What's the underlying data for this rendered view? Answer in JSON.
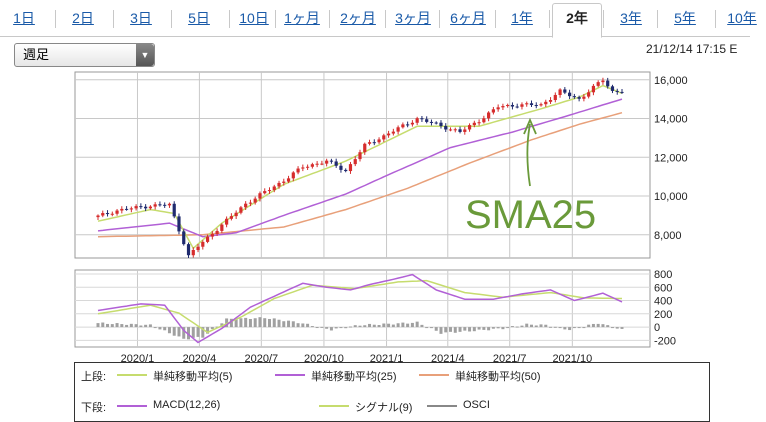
{
  "tabs": [
    "1日",
    "2日",
    "3日",
    "5日",
    "10日",
    "1ヶ月",
    "2ヶ月",
    "3ヶ月",
    "6ヶ月",
    "1年",
    "2年",
    "3年",
    "5年",
    "10年"
  ],
  "active_tab": "2年",
  "period_select": "週足",
  "timestamp": "21/12/14 17:15 E",
  "annotation": "SMA25",
  "legend": {
    "upper_label": "上段:",
    "lower_label": "下段:",
    "upper_items": [
      {
        "name": "単純移動平均(5)",
        "color": "#c6dc6e"
      },
      {
        "name": "単純移動平均(25)",
        "color": "#b160d6"
      },
      {
        "name": "単純移動平均(50)",
        "color": "#e8a07a"
      }
    ],
    "lower_items": [
      {
        "name": "MACD(12,26)",
        "color": "#b160d6"
      },
      {
        "name": "シグナル(9)",
        "color": "#c6dc6e"
      },
      {
        "name": "OSCI",
        "color": "#888888"
      }
    ]
  },
  "colors": {
    "up": "#d62c2c",
    "down": "#1f2a6e",
    "annotation": "#6a9a3a"
  },
  "chart_data": [
    {
      "type": "candlestick",
      "title": "",
      "x_tick_labels": [
        "2020/1",
        "2020/4",
        "2020/7",
        "2020/10",
        "2021/1",
        "2021/4",
        "2021/7",
        "2021/10"
      ],
      "y_ticks": [
        8000,
        10000,
        12000,
        14000,
        16000
      ],
      "y_tick_labels": [
        "8,000",
        "10,000",
        "12,000",
        "14,000",
        "16,000"
      ],
      "ylim": [
        6800,
        16400
      ],
      "x_start": "2019-11-04",
      "x_end": "2021-12-13",
      "close_anchors": [
        [
          "2019-11-04",
          8950
        ],
        [
          "2019-12-01",
          9250
        ],
        [
          "2020-01-20",
          9500
        ],
        [
          "2020-02-17",
          9550
        ],
        [
          "2020-03-09",
          7600
        ],
        [
          "2020-03-16",
          6900
        ],
        [
          "2020-03-30",
          7400
        ],
        [
          "2020-04-27",
          8300
        ],
        [
          "2020-06-08",
          9600
        ],
        [
          "2020-07-06",
          10200
        ],
        [
          "2020-08-03",
          10800
        ],
        [
          "2020-08-31",
          11500
        ],
        [
          "2020-10-05",
          11800
        ],
        [
          "2020-11-02",
          11300
        ],
        [
          "2020-11-30",
          12600
        ],
        [
          "2020-12-28",
          13100
        ],
        [
          "2021-02-15",
          14000
        ],
        [
          "2021-03-15",
          13700
        ],
        [
          "2021-04-19",
          13300
        ],
        [
          "2021-05-17",
          13900
        ],
        [
          "2021-06-14",
          14600
        ],
        [
          "2021-07-12",
          14700
        ],
        [
          "2021-08-16",
          14700
        ],
        [
          "2021-09-13",
          15400
        ],
        [
          "2021-10-11",
          15000
        ],
        [
          "2021-11-15",
          16000
        ],
        [
          "2021-11-29",
          15400
        ],
        [
          "2021-12-13",
          15400
        ]
      ],
      "sma25_anchors": [
        [
          "2019-11-04",
          8200
        ],
        [
          "2020-02-17",
          8600
        ],
        [
          "2020-04-06",
          7900
        ],
        [
          "2020-05-25",
          8100
        ],
        [
          "2020-08-03",
          9000
        ],
        [
          "2020-11-02",
          10100
        ],
        [
          "2021-01-04",
          11100
        ],
        [
          "2021-04-05",
          12500
        ],
        [
          "2021-07-05",
          13300
        ],
        [
          "2021-09-20",
          14100
        ],
        [
          "2021-12-13",
          15000
        ]
      ],
      "sma50_anchors": [
        [
          "2019-11-04",
          7900
        ],
        [
          "2020-04-06",
          8000
        ],
        [
          "2020-08-03",
          8400
        ],
        [
          "2020-11-02",
          9300
        ],
        [
          "2021-02-01",
          10400
        ],
        [
          "2021-05-03",
          11700
        ],
        [
          "2021-08-02",
          12900
        ],
        [
          "2021-10-11",
          13700
        ],
        [
          "2021-12-13",
          14300
        ]
      ],
      "sma5_anchors": [
        [
          "2019-11-04",
          8700
        ],
        [
          "2020-01-20",
          9300
        ],
        [
          "2020-02-24",
          9100
        ],
        [
          "2020-03-23",
          7300
        ],
        [
          "2020-05-04",
          8600
        ],
        [
          "2020-08-03",
          10600
        ],
        [
          "2020-11-02",
          11800
        ],
        [
          "2021-02-15",
          13600
        ],
        [
          "2021-05-17",
          13600
        ],
        [
          "2021-08-16",
          14500
        ],
        [
          "2021-10-11",
          15100
        ],
        [
          "2021-11-15",
          15700
        ],
        [
          "2021-12-13",
          15300
        ]
      ]
    },
    {
      "type": "line+bar",
      "title": "",
      "y_ticks": [
        -200,
        0,
        200,
        400,
        600,
        800
      ],
      "y_tick_labels": [
        "-200",
        "0",
        "200",
        "400",
        "600",
        "800"
      ],
      "ylim": [
        -300,
        860
      ],
      "macd_anchors": [
        [
          "2019-11-04",
          250
        ],
        [
          "2020-01-06",
          350
        ],
        [
          "2020-02-10",
          330
        ],
        [
          "2020-03-09",
          -50
        ],
        [
          "2020-03-30",
          -230
        ],
        [
          "2020-05-04",
          -20
        ],
        [
          "2020-06-15",
          300
        ],
        [
          "2020-08-03",
          530
        ],
        [
          "2020-08-31",
          660
        ],
        [
          "2020-10-05",
          600
        ],
        [
          "2020-11-09",
          560
        ],
        [
          "2020-12-07",
          640
        ],
        [
          "2021-01-11",
          720
        ],
        [
          "2021-02-08",
          790
        ],
        [
          "2021-03-15",
          560
        ],
        [
          "2021-04-26",
          420
        ],
        [
          "2021-06-07",
          420
        ],
        [
          "2021-07-19",
          500
        ],
        [
          "2021-08-30",
          560
        ],
        [
          "2021-10-04",
          400
        ],
        [
          "2021-11-15",
          510
        ],
        [
          "2021-12-13",
          380
        ]
      ],
      "signal_anchors": [
        [
          "2019-11-04",
          200
        ],
        [
          "2020-01-20",
          330
        ],
        [
          "2020-03-02",
          210
        ],
        [
          "2020-04-13",
          -80
        ],
        [
          "2020-06-01",
          150
        ],
        [
          "2020-07-20",
          430
        ],
        [
          "2020-09-14",
          630
        ],
        [
          "2020-11-16",
          580
        ],
        [
          "2021-01-18",
          680
        ],
        [
          "2021-03-01",
          700
        ],
        [
          "2021-04-26",
          520
        ],
        [
          "2021-06-21",
          450
        ],
        [
          "2021-08-30",
          520
        ],
        [
          "2021-10-18",
          440
        ],
        [
          "2021-12-13",
          430
        ]
      ],
      "osci_anchors": [
        [
          "2019-11-04",
          60
        ],
        [
          "2020-01-20",
          30
        ],
        [
          "2020-03-09",
          -180
        ],
        [
          "2020-04-06",
          -150
        ],
        [
          "2020-05-11",
          120
        ],
        [
          "2020-07-06",
          140
        ],
        [
          "2020-08-24",
          70
        ],
        [
          "2020-10-12",
          -40
        ],
        [
          "2020-11-23",
          30
        ],
        [
          "2021-01-11",
          50
        ],
        [
          "2021-02-15",
          70
        ],
        [
          "2021-03-22",
          -90
        ],
        [
          "2021-05-03",
          -60
        ],
        [
          "2021-06-21",
          -20
        ],
        [
          "2021-07-26",
          40
        ],
        [
          "2021-08-23",
          30
        ],
        [
          "2021-09-27",
          -40
        ],
        [
          "2021-11-08",
          60
        ],
        [
          "2021-12-13",
          -40
        ]
      ]
    }
  ]
}
